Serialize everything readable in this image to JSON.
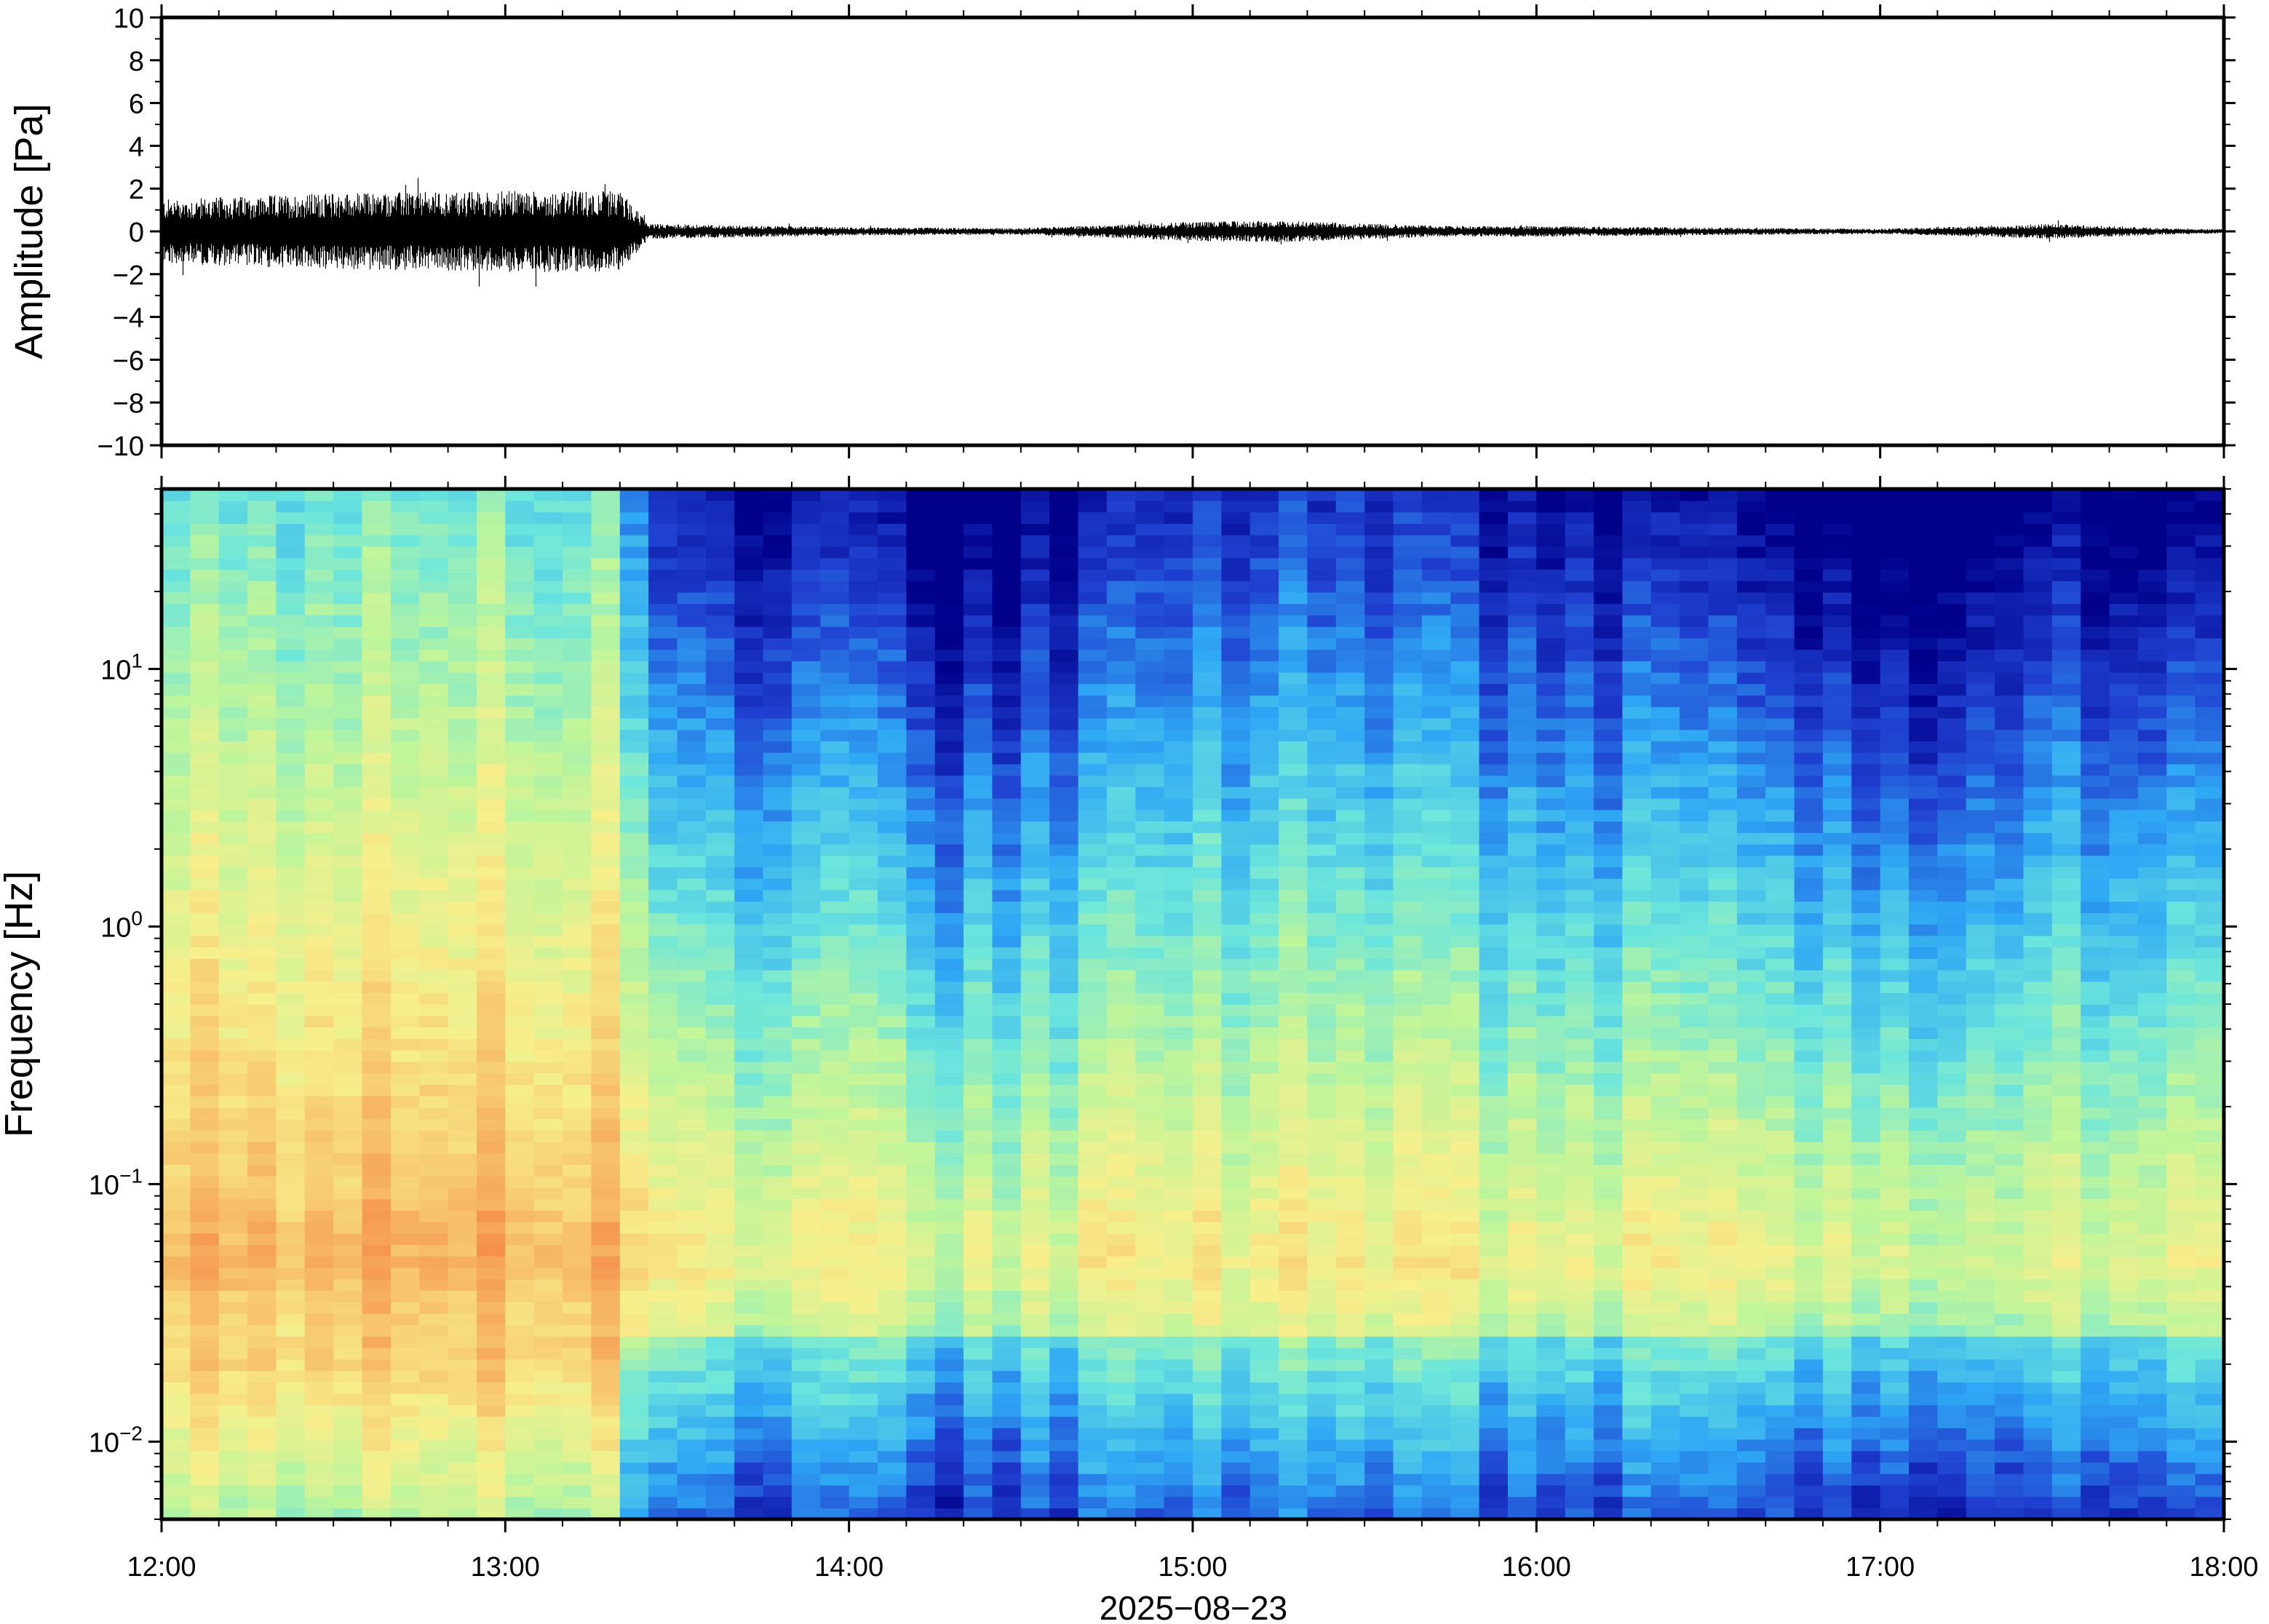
{
  "chart_data": [
    {
      "type": "line",
      "ylabel": "Amplitude [Pa]",
      "ylim": [
        -10,
        10
      ],
      "yticks": [
        10,
        8,
        6,
        4,
        2,
        0,
        -2,
        -4,
        -6,
        -8,
        -10
      ],
      "ytick_labels": [
        "10",
        "8",
        "6",
        "4",
        "2",
        "0",
        "−2",
        "−4",
        "−6",
        "−8",
        "−10"
      ],
      "xlim": [
        "2025-08-23 12:00",
        "2025-08-23 18:00"
      ],
      "grid": false,
      "series": [
        {
          "color": "#000000",
          "envelope_times": [
            "12:00",
            "12:30",
            "13:00",
            "13:20",
            "13:25",
            "14:00",
            "14:30",
            "15:00",
            "15:15",
            "15:45",
            "16:00",
            "16:30",
            "17:00",
            "17:30",
            "17:50",
            "18:00"
          ],
          "envelope_max_abs": [
            1.5,
            1.8,
            1.9,
            1.9,
            0.35,
            0.2,
            0.15,
            0.45,
            0.5,
            0.25,
            0.25,
            0.18,
            0.12,
            0.35,
            0.15,
            0.1
          ],
          "peak_max": 2.5,
          "peak_min": -2.9
        }
      ]
    },
    {
      "type": "heatmap",
      "ylabel": "Frequency [Hz]",
      "xlabel": "2025−08−23",
      "yscale": "log",
      "ylim": [
        0.005,
        50
      ],
      "ytick_values": [
        0.01,
        0.1,
        1,
        10
      ],
      "ytick_labels": [
        {
          "base": "10",
          "exp": "−2"
        },
        {
          "base": "10",
          "exp": "−1"
        },
        {
          "base": "10",
          "exp": "0"
        },
        {
          "base": "10",
          "exp": "1"
        }
      ],
      "x_tick_labels": [
        "12:00",
        "13:00",
        "14:00",
        "15:00",
        "16:00",
        "17:00",
        "18:00"
      ],
      "colormap": [
        "#00008b",
        "#1f3fd0",
        "#2fa8f5",
        "#6ce6dc",
        "#bff59a",
        "#f7ef8c",
        "#f7c36c",
        "#f58e4c",
        "#f0605a"
      ],
      "activity_times": [
        "12:00",
        "12:30",
        "13:00",
        "13:20",
        "13:25",
        "14:00",
        "14:20",
        "14:40",
        "15:00",
        "15:15",
        "15:40",
        "16:00",
        "16:20",
        "16:45",
        "17:05",
        "17:25",
        "17:50",
        "18:00"
      ],
      "activity_level": [
        1.0,
        1.0,
        1.0,
        1.0,
        0.45,
        0.45,
        0.3,
        0.42,
        0.55,
        0.6,
        0.5,
        0.47,
        0.45,
        0.35,
        0.25,
        0.45,
        0.37,
        0.35
      ]
    }
  ]
}
